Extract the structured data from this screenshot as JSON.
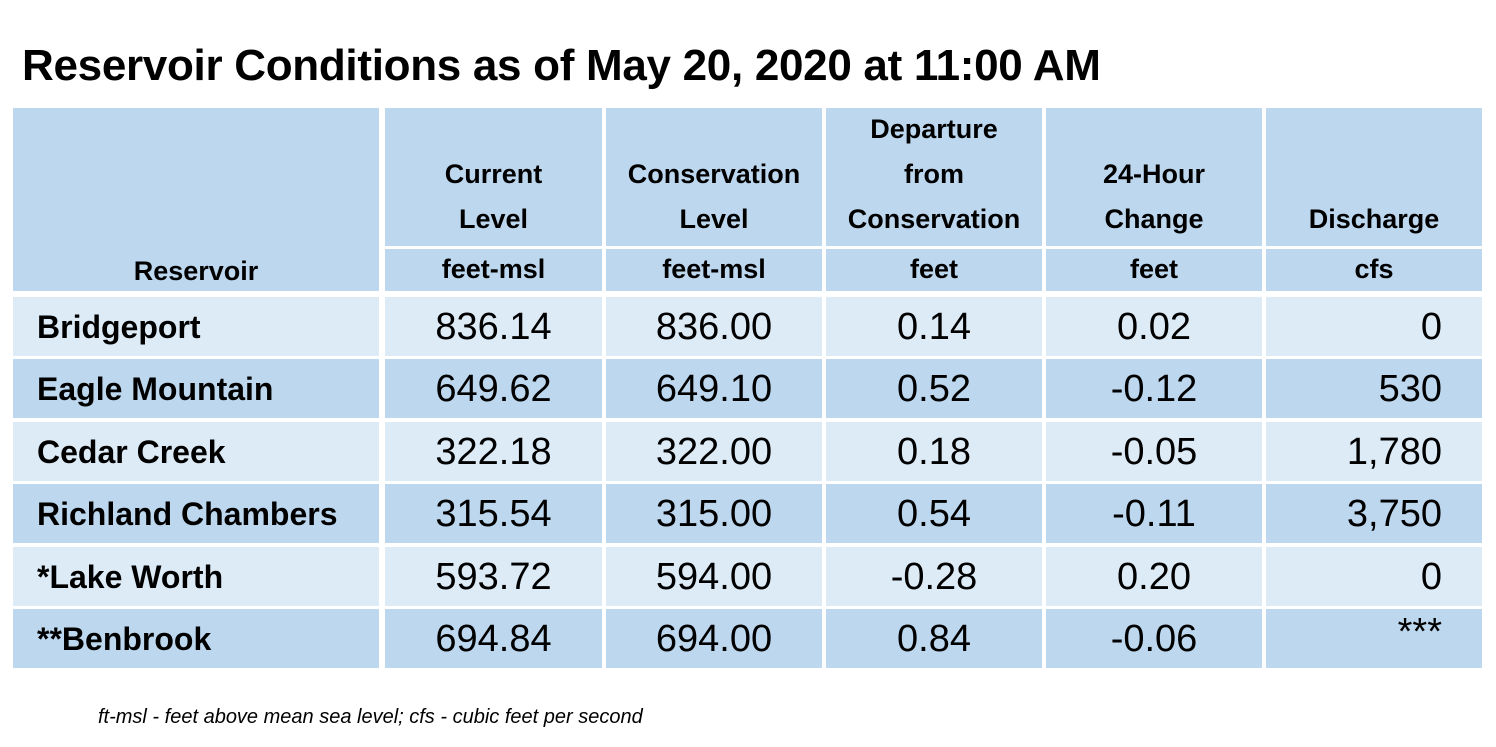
{
  "title": "Reservoir Conditions as of May 20, 2020 at 11:00 AM",
  "colors": {
    "header_bg": "#bdd7ee",
    "row_light": "#ddebf7",
    "row_dark": "#bdd7ee"
  },
  "table": {
    "header": {
      "reservoir": "Reservoir",
      "current": [
        "Current",
        "Level"
      ],
      "conservation": [
        "Conservation",
        "Level"
      ],
      "departure": [
        "Departure",
        "from",
        "Conservation"
      ],
      "change": [
        "24-Hour",
        "Change"
      ],
      "discharge": "Discharge"
    },
    "units": {
      "current": "feet-msl",
      "conservation": "feet-msl",
      "departure": "feet",
      "change": "feet",
      "discharge": "cfs"
    },
    "rows": [
      {
        "name": "Bridgeport",
        "current": "836.14",
        "conservation": "836.00",
        "departure": "0.14",
        "change": "0.02",
        "discharge": "0"
      },
      {
        "name": "Eagle Mountain",
        "current": "649.62",
        "conservation": "649.10",
        "departure": "0.52",
        "change": "-0.12",
        "discharge": "530"
      },
      {
        "name": "Cedar Creek",
        "current": "322.18",
        "conservation": "322.00",
        "departure": "0.18",
        "change": "-0.05",
        "discharge": "1,780"
      },
      {
        "name": "Richland Chambers",
        "current": "315.54",
        "conservation": "315.00",
        "departure": "0.54",
        "change": "-0.11",
        "discharge": "3,750"
      },
      {
        "name": "*Lake Worth",
        "current": "593.72",
        "conservation": "594.00",
        "departure": "-0.28",
        "change": "0.20",
        "discharge": "0"
      },
      {
        "name": "**Benbrook",
        "current": "694.84",
        "conservation": "694.00",
        "departure": "0.84",
        "change": "-0.06",
        "discharge": "***"
      }
    ]
  },
  "footnote": "ft-msl - feet above mean sea level; cfs - cubic feet per second"
}
